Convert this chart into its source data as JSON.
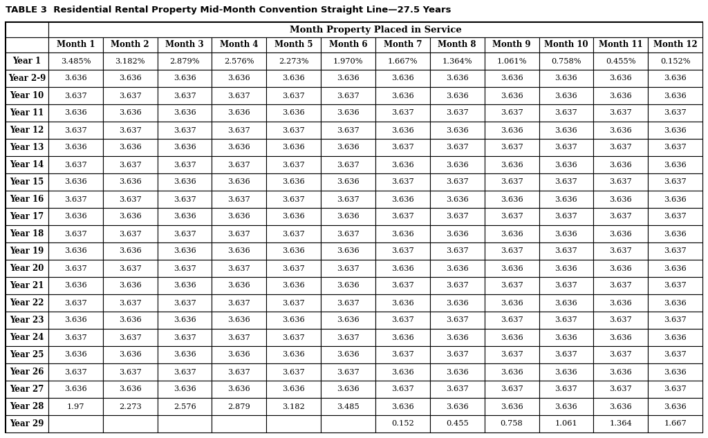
{
  "title": "TABLE 3  Residential Rental Property Mid-Month Convention Straight Line—27.5 Years",
  "header_row1": "Month Property Placed in Service",
  "col_headers": [
    "",
    "Month 1",
    "Month 2",
    "Month 3",
    "Month 4",
    "Month 5",
    "Month 6",
    "Month 7",
    "Month 8",
    "Month 9",
    "Month 10",
    "Month 11",
    "Month 12"
  ],
  "rows": [
    [
      "Year 1",
      "3.485%",
      "3.182%",
      "2.879%",
      "2.576%",
      "2.273%",
      "1.970%",
      "1.667%",
      "1.364%",
      "1.061%",
      "0.758%",
      "0.455%",
      "0.152%"
    ],
    [
      "Year 2-9",
      "3.636",
      "3.636",
      "3.636",
      "3.636",
      "3.636",
      "3.636",
      "3.636",
      "3.636",
      "3.636",
      "3.636",
      "3.636",
      "3.636"
    ],
    [
      "Year 10",
      "3.637",
      "3.637",
      "3.637",
      "3.637",
      "3.637",
      "3.637",
      "3.636",
      "3.636",
      "3.636",
      "3.636",
      "3.636",
      "3.636"
    ],
    [
      "Year 11",
      "3.636",
      "3.636",
      "3.636",
      "3.636",
      "3.636",
      "3.636",
      "3.637",
      "3.637",
      "3.637",
      "3.637",
      "3.637",
      "3.637"
    ],
    [
      "Year 12",
      "3.637",
      "3.637",
      "3.637",
      "3.637",
      "3.637",
      "3.637",
      "3.636",
      "3.636",
      "3.636",
      "3.636",
      "3.636",
      "3.636"
    ],
    [
      "Year 13",
      "3.636",
      "3.636",
      "3.636",
      "3.636",
      "3.636",
      "3.636",
      "3.637",
      "3.637",
      "3.637",
      "3.637",
      "3.637",
      "3.637"
    ],
    [
      "Year 14",
      "3.637",
      "3.637",
      "3.637",
      "3.637",
      "3.637",
      "3.637",
      "3.636",
      "3.636",
      "3.636",
      "3.636",
      "3.636",
      "3.636"
    ],
    [
      "Year 15",
      "3.636",
      "3.636",
      "3.636",
      "3.636",
      "3.636",
      "3.636",
      "3.637",
      "3.637",
      "3.637",
      "3.637",
      "3.637",
      "3.637"
    ],
    [
      "Year 16",
      "3.637",
      "3.637",
      "3.637",
      "3.637",
      "3.637",
      "3.637",
      "3.636",
      "3.636",
      "3.636",
      "3.636",
      "3.636",
      "3.636"
    ],
    [
      "Year 17",
      "3.636",
      "3.636",
      "3.636",
      "3.636",
      "3.636",
      "3.636",
      "3.637",
      "3.637",
      "3.637",
      "3.637",
      "3.637",
      "3.637"
    ],
    [
      "Year 18",
      "3.637",
      "3.637",
      "3.637",
      "3.637",
      "3.637",
      "3.637",
      "3.636",
      "3.636",
      "3.636",
      "3.636",
      "3.636",
      "3.636"
    ],
    [
      "Year 19",
      "3.636",
      "3.636",
      "3.636",
      "3.636",
      "3.636",
      "3.636",
      "3.637",
      "3.637",
      "3.637",
      "3.637",
      "3.637",
      "3.637"
    ],
    [
      "Year 20",
      "3.637",
      "3.637",
      "3.637",
      "3.637",
      "3.637",
      "3.637",
      "3.636",
      "3.636",
      "3.636",
      "3.636",
      "3.636",
      "3.636"
    ],
    [
      "Year 21",
      "3.636",
      "3.636",
      "3.636",
      "3.636",
      "3.636",
      "3.636",
      "3.637",
      "3.637",
      "3.637",
      "3.637",
      "3.637",
      "3.637"
    ],
    [
      "Year 22",
      "3.637",
      "3.637",
      "3.637",
      "3.637",
      "3.637",
      "3.637",
      "3.636",
      "3.636",
      "3.636",
      "3.636",
      "3.636",
      "3.636"
    ],
    [
      "Year 23",
      "3.636",
      "3.636",
      "3.636",
      "3.636",
      "3.636",
      "3.636",
      "3.637",
      "3.637",
      "3.637",
      "3.637",
      "3.637",
      "3.637"
    ],
    [
      "Year 24",
      "3.637",
      "3.637",
      "3.637",
      "3.637",
      "3.637",
      "3.637",
      "3.636",
      "3.636",
      "3.636",
      "3.636",
      "3.636",
      "3.636"
    ],
    [
      "Year 25",
      "3.636",
      "3.636",
      "3.636",
      "3.636",
      "3.636",
      "3.636",
      "3.637",
      "3.637",
      "3.637",
      "3.637",
      "3.637",
      "3.637"
    ],
    [
      "Year 26",
      "3.637",
      "3.637",
      "3.637",
      "3.637",
      "3.637",
      "3.637",
      "3.636",
      "3.636",
      "3.636",
      "3.636",
      "3.636",
      "3.636"
    ],
    [
      "Year 27",
      "3.636",
      "3.636",
      "3.636",
      "3.636",
      "3.636",
      "3.636",
      "3.637",
      "3.637",
      "3.637",
      "3.637",
      "3.637",
      "3.637"
    ],
    [
      "Year 28",
      "1.97",
      "2.273",
      "2.576",
      "2.879",
      "3.182",
      "3.485",
      "3.636",
      "3.636",
      "3.636",
      "3.636",
      "3.636",
      "3.636"
    ],
    [
      "Year 29",
      "",
      "",
      "",
      "",
      "",
      "",
      "0.152",
      "0.455",
      "0.758",
      "1.061",
      "1.364",
      "1.667"
    ]
  ],
  "bg_color": "#ffffff",
  "text_color": "#000000",
  "title_fontsize": 9.5,
  "header_fontsize": 8.5,
  "cell_fontsize": 8.2,
  "row_label_fontsize": 8.5,
  "fig_width": 10.24,
  "fig_height": 6.34,
  "dpi": 100
}
